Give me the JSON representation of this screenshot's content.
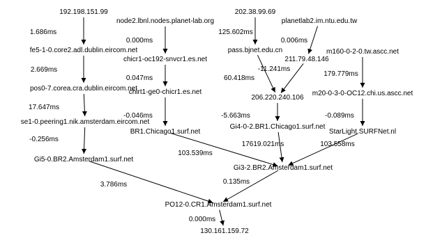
{
  "nodes": [
    {
      "id": "n1",
      "label": "192.198.151.99"
    },
    {
      "id": "n2",
      "label": "fe5-1-0.core2.adl.dublin.eircom.net"
    },
    {
      "id": "n3",
      "label": "pos0-7.corea.cra.dublin.eircom.net"
    },
    {
      "id": "n4",
      "label": "se1-0.peering1.nik.amsterdam.eircom.net"
    },
    {
      "id": "n5",
      "label": "Gi5-0.BR2.Amsterdam1.surf.net"
    },
    {
      "id": "n6",
      "label": "node2.lbnl.nodes.planet-lab.org"
    },
    {
      "id": "n7",
      "label": "chicr1-oc192-snvcr1.es.net"
    },
    {
      "id": "n8",
      "label": "chirt1-ge0-chicr1.es.net"
    },
    {
      "id": "n9",
      "label": "BR1.Chicago1.surf.net"
    },
    {
      "id": "n10",
      "label": "202.38.99.69"
    },
    {
      "id": "n11",
      "label": "pass.bjnet.edu.cn"
    },
    {
      "id": "n12",
      "label": "planetlab2.im.ntu.edu.tw"
    },
    {
      "id": "n13",
      "label": "211.79.48.146"
    },
    {
      "id": "n14",
      "label": "206.220.240.106"
    },
    {
      "id": "n15",
      "label": "Gi4-0-2.BR1.Chicago1.surf.net"
    },
    {
      "id": "n16",
      "label": "m160-0-2-0.tw.ascc.net"
    },
    {
      "id": "n17",
      "label": "m20-0-3-0-OC12.chi.us.ascc.net"
    },
    {
      "id": "n18",
      "label": "StarLight.SURFNet.nl"
    },
    {
      "id": "n19",
      "label": "Gi3-2.BR2.Amsterdam1.surf.net"
    },
    {
      "id": "n20",
      "label": "PO12-0.CR1.Amsterdam1.surf.net"
    },
    {
      "id": "n21",
      "label": "130.161.159.72"
    }
  ],
  "edges": [
    {
      "from": "n1",
      "to": "n2",
      "label": "1.686ms"
    },
    {
      "from": "n2",
      "to": "n3",
      "label": "2.669ms"
    },
    {
      "from": "n3",
      "to": "n4",
      "label": "17.647ms"
    },
    {
      "from": "n4",
      "to": "n5",
      "label": "-0.256ms"
    },
    {
      "from": "n5",
      "to": "n20",
      "label": "3.786ms"
    },
    {
      "from": "n6",
      "to": "n7",
      "label": "0.000ms"
    },
    {
      "from": "n7",
      "to": "n8",
      "label": "0.047ms"
    },
    {
      "from": "n8",
      "to": "n9",
      "label": "-0.046ms"
    },
    {
      "from": "n9",
      "to": "n19",
      "label": "103.539ms"
    },
    {
      "from": "n10",
      "to": "n11",
      "label": "125.602ms"
    },
    {
      "from": "n11",
      "to": "n14",
      "label": "60.418ms"
    },
    {
      "from": "n12",
      "to": "n13",
      "label": "0.006ms"
    },
    {
      "from": "n13",
      "to": "n14",
      "label": "-11.241ms"
    },
    {
      "from": "n14",
      "to": "n15",
      "label": "-5.663ms"
    },
    {
      "from": "n15",
      "to": "n19",
      "label": "17619.021ms"
    },
    {
      "from": "n16",
      "to": "n17",
      "label": "179.779ms"
    },
    {
      "from": "n17",
      "to": "n18",
      "label": "-0.089ms"
    },
    {
      "from": "n18",
      "to": "n19",
      "label": "103.558ms"
    },
    {
      "from": "n19",
      "to": "n20",
      "label": "0.135ms"
    },
    {
      "from": "n20",
      "to": "n21",
      "label": "0.000ms"
    }
  ]
}
